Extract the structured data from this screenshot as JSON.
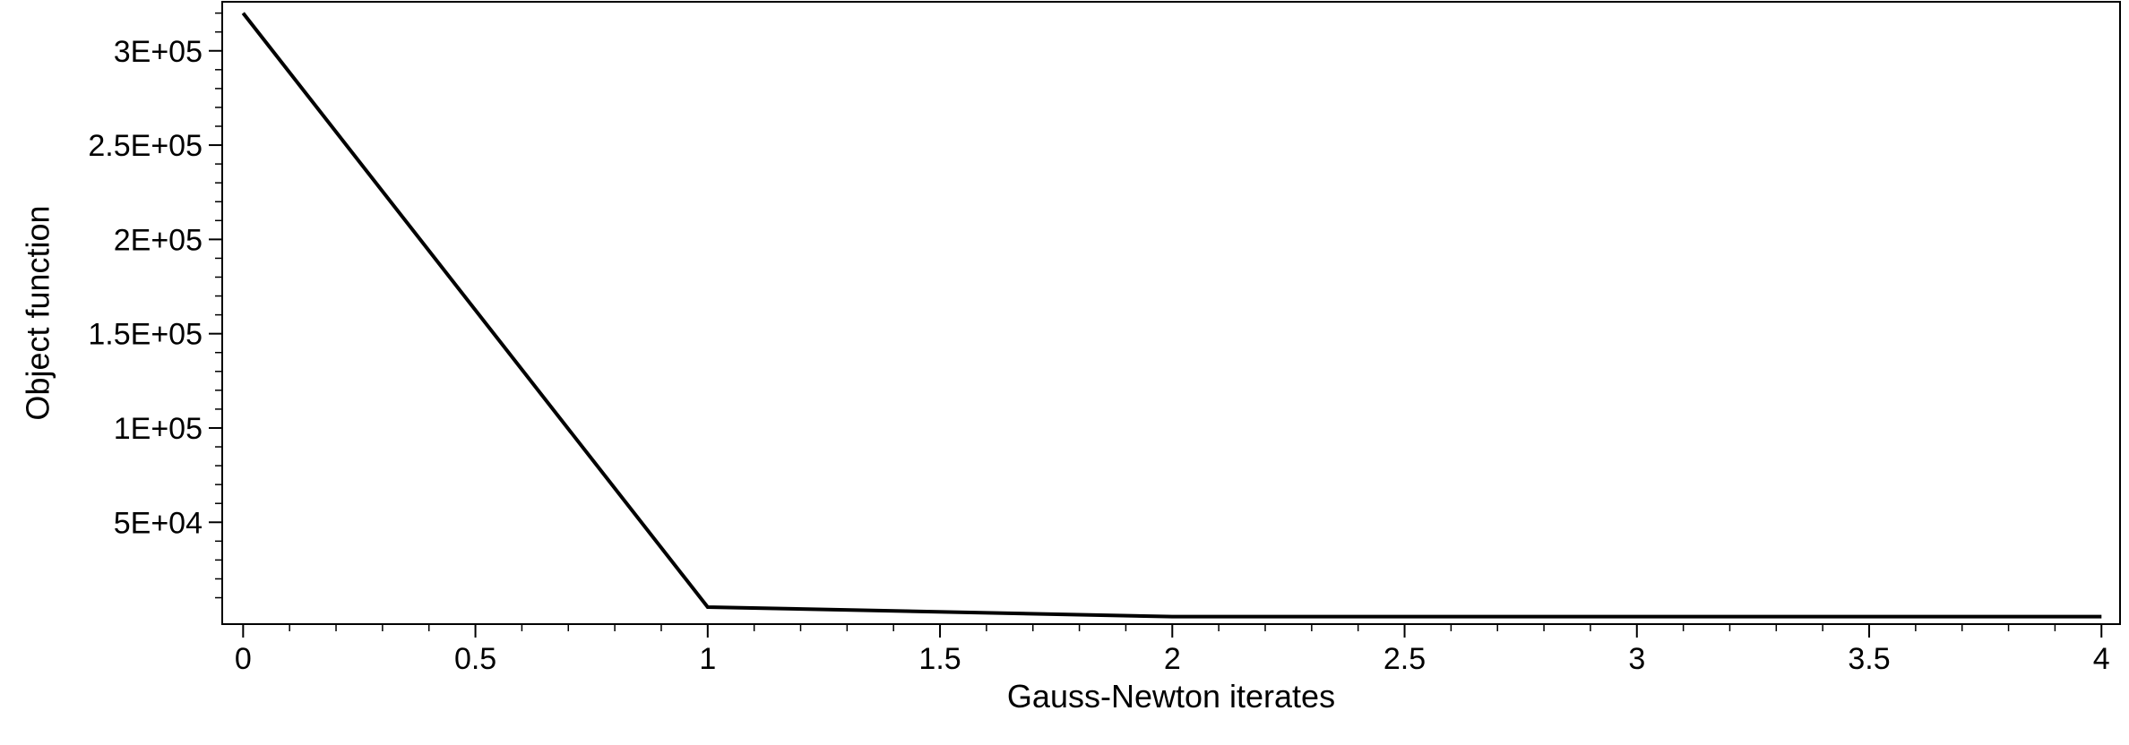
{
  "chart_data": {
    "type": "line",
    "xlabel": "Gauss-Newton iterates",
    "ylabel": "Object function",
    "xlim": [
      -0.045,
      4.04
    ],
    "ylim": [
      -4000,
      326000
    ],
    "x_ticks": [
      0,
      0.5,
      1,
      1.5,
      2,
      2.5,
      3,
      3.5,
      4
    ],
    "x_tick_labels": [
      "0",
      "0.5",
      "1",
      "1.5",
      "2",
      "2.5",
      "3",
      "3.5",
      "4"
    ],
    "y_ticks": [
      50000,
      100000,
      150000,
      200000,
      250000,
      300000
    ],
    "y_tick_labels": [
      "5E+04",
      "1E+05",
      "1.5E+05",
      "2E+05",
      "2.5E+05",
      "3E+05"
    ],
    "grid": false,
    "series": [
      {
        "x": [
          0,
          1,
          2,
          3,
          4
        ],
        "y": [
          320000,
          5000,
          0,
          0,
          0
        ],
        "color": "#000000"
      }
    ]
  }
}
